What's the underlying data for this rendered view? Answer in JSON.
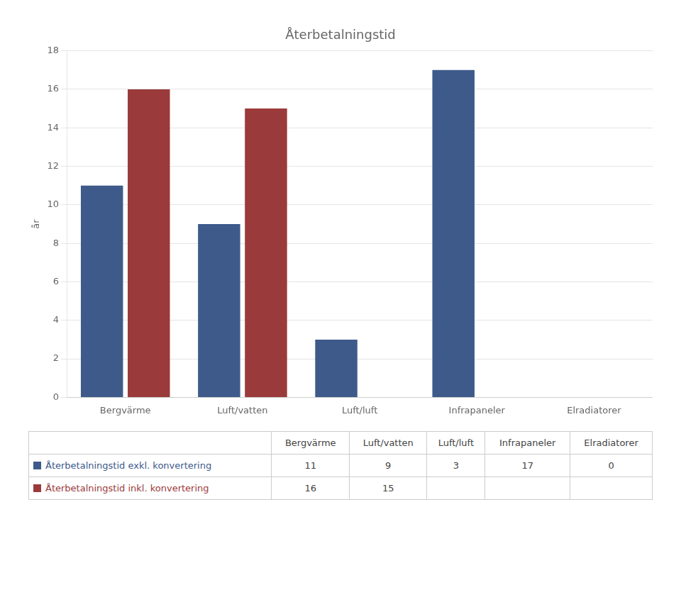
{
  "chart_data": {
    "type": "bar",
    "title": "Återbetalningstid",
    "ylabel": "år",
    "categories": [
      "Bergvärme",
      "Luft/vatten",
      "Luft/luft",
      "Infrapaneler",
      "Elradiatorer"
    ],
    "series": [
      {
        "name": "Återbetalningstid exkl. konvertering",
        "color": "#3D5A8A",
        "values": [
          11,
          9,
          3,
          17,
          0
        ],
        "table_values": [
          11,
          9,
          3,
          17,
          0
        ]
      },
      {
        "name": "Återbetalningstid inkl. konvertering",
        "color": "#9B3A3A",
        "values": [
          16,
          15,
          0,
          0,
          0
        ],
        "table_values": [
          16,
          15,
          null,
          null,
          null
        ]
      }
    ],
    "ylim": [
      0,
      18
    ],
    "yticks": [
      0,
      2,
      4,
      6,
      8,
      10,
      12,
      14,
      16,
      18
    ],
    "grid": true
  }
}
